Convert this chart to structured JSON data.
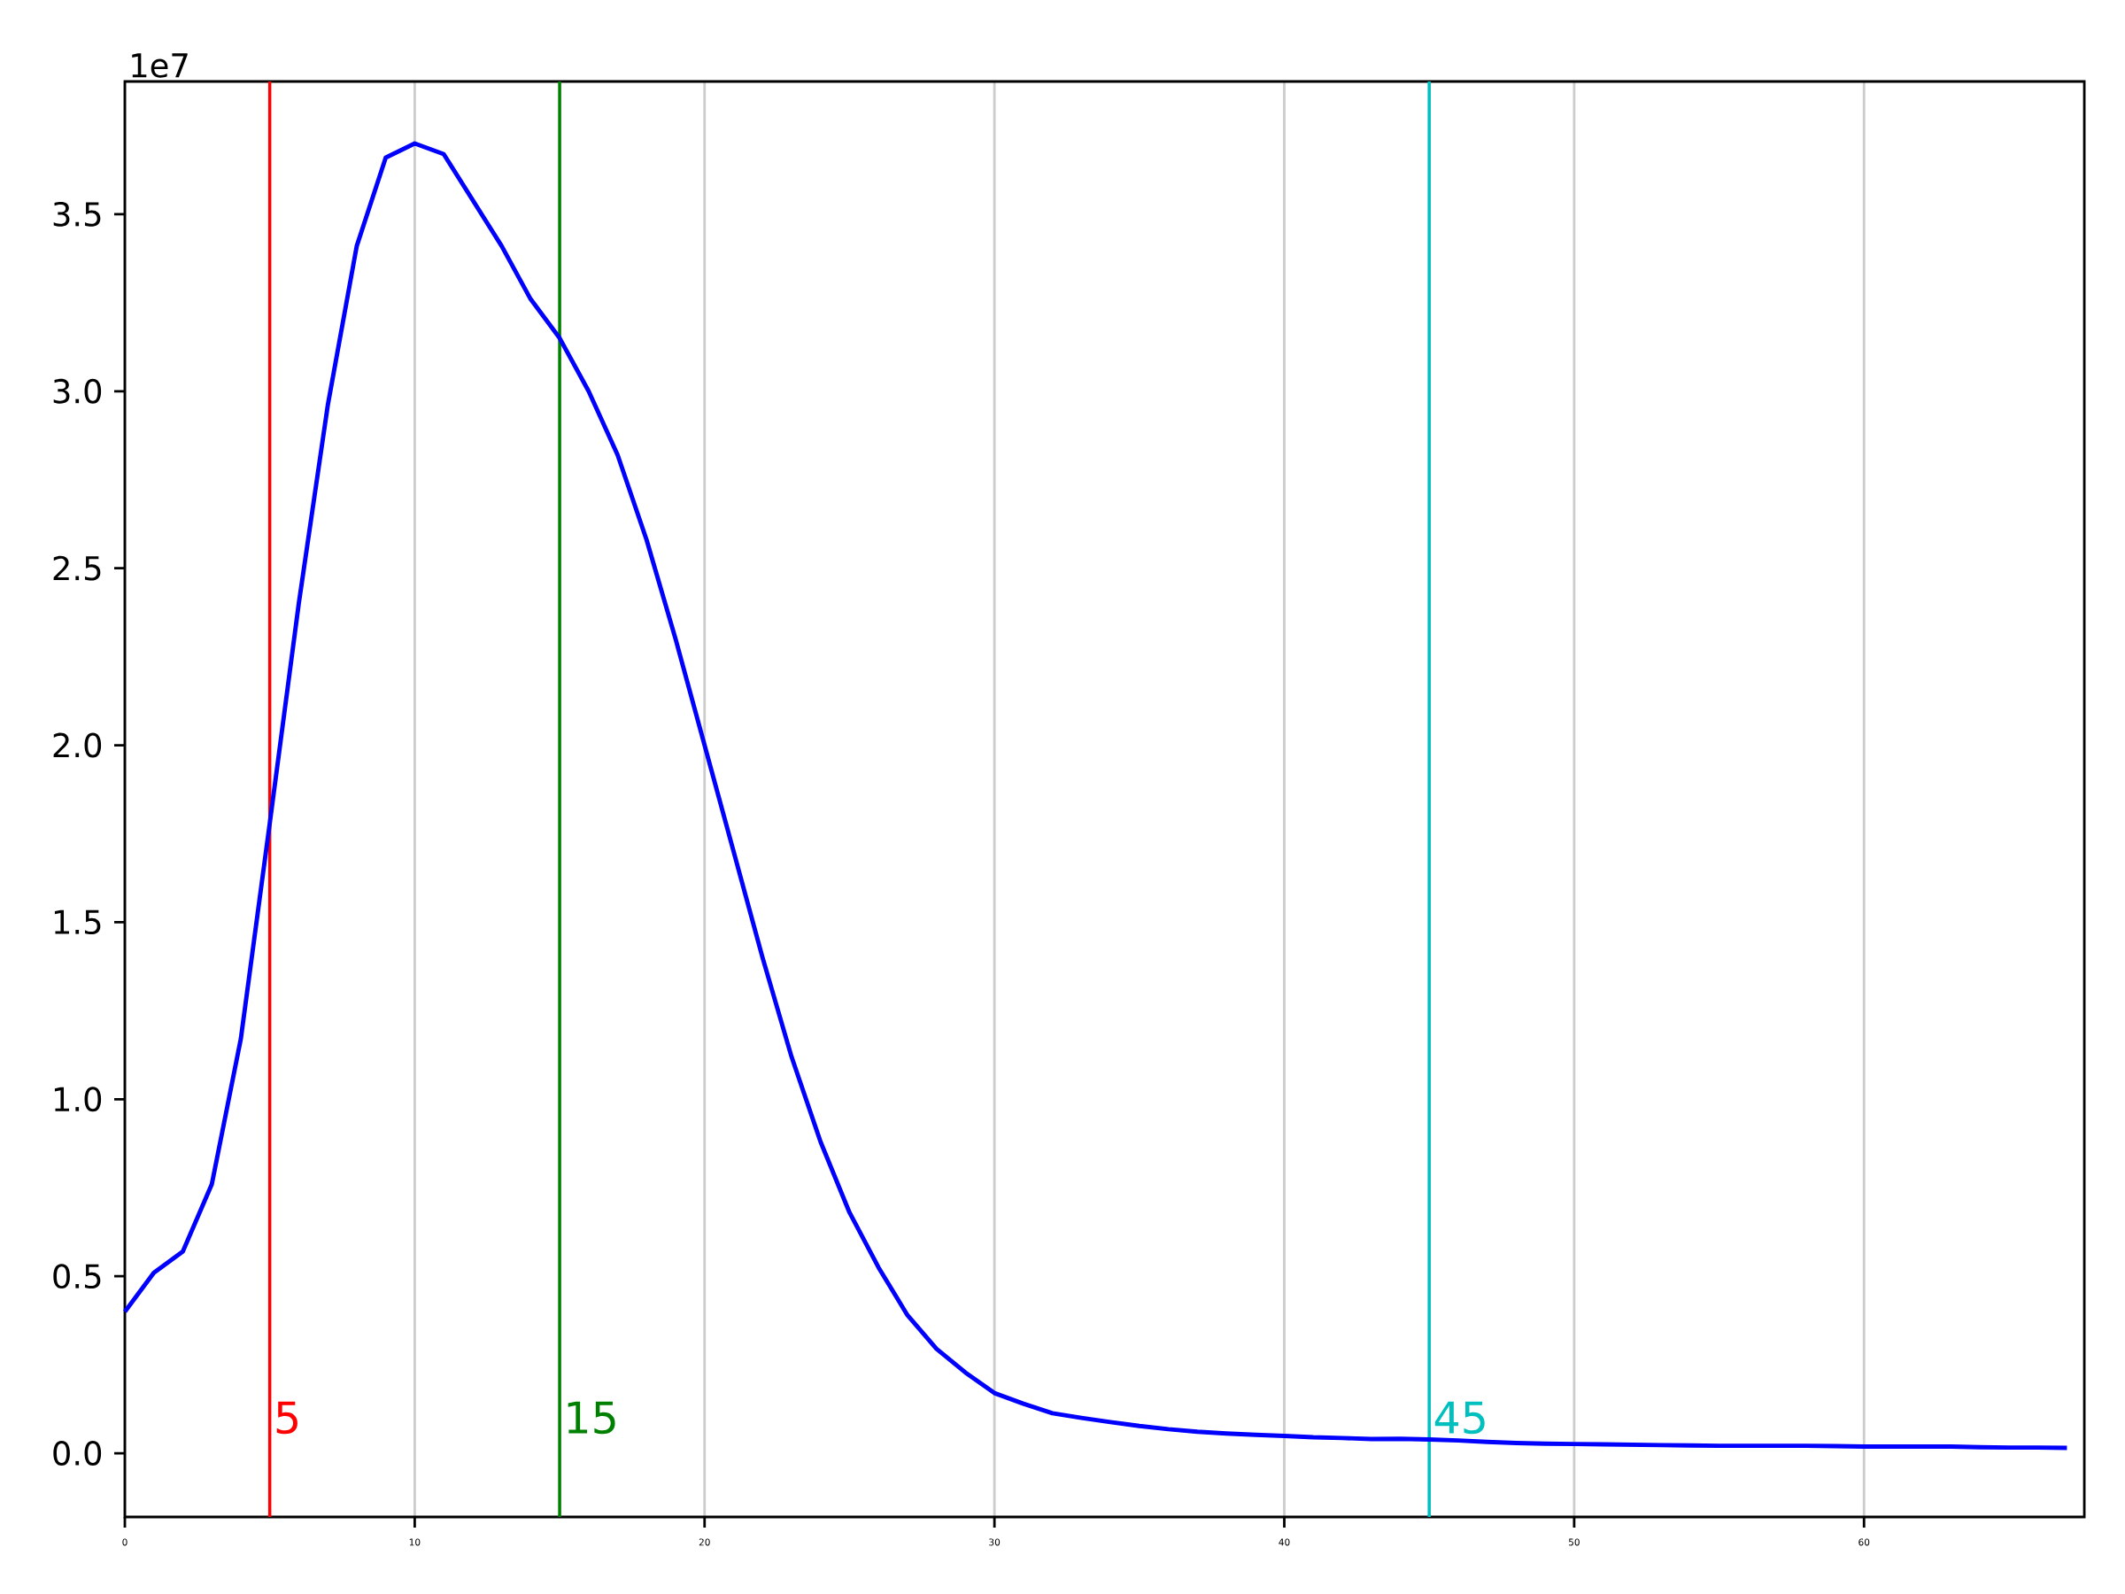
{
  "chart_data": {
    "type": "line",
    "x": [
      0,
      1,
      2,
      3,
      4,
      5,
      6,
      7,
      8,
      9,
      10,
      11,
      12,
      13,
      14,
      15,
      16,
      17,
      18,
      19,
      20,
      21,
      22,
      23,
      24,
      25,
      26,
      27,
      28,
      29,
      30,
      31,
      32,
      33,
      34,
      35,
      36,
      37,
      38,
      39,
      40,
      41,
      42,
      43,
      44,
      45,
      46,
      47,
      48,
      49,
      50,
      51,
      52,
      53,
      54,
      55,
      56,
      57,
      58,
      59,
      60,
      61,
      62,
      63,
      64,
      65,
      66,
      67
    ],
    "series": [
      {
        "color": "#0000ff",
        "values": [
          0.4,
          0.51,
          0.57,
          0.76,
          1.17,
          1.78,
          2.4,
          2.96,
          3.41,
          3.66,
          3.7,
          3.67,
          3.54,
          3.41,
          3.26,
          3.15,
          3.0,
          2.82,
          2.58,
          2.3,
          2.0,
          1.7,
          1.4,
          1.12,
          0.88,
          0.68,
          0.525,
          0.39,
          0.295,
          0.228,
          0.17,
          0.14,
          0.113,
          0.1,
          0.088,
          0.077,
          0.068,
          0.061,
          0.056,
          0.052,
          0.049,
          0.045,
          0.043,
          0.04,
          0.041,
          0.039,
          0.036,
          0.032,
          0.029,
          0.027,
          0.026,
          0.025,
          0.024,
          0.023,
          0.022,
          0.021,
          0.021,
          0.021,
          0.021,
          0.02,
          0.019,
          0.019,
          0.019,
          0.019,
          0.017,
          0.016,
          0.016,
          0.015
        ]
      }
    ],
    "xlim": [
      0,
      67.6
    ],
    "ylim": [
      -0.18,
      3.875
    ],
    "xticks": [
      0,
      10,
      20,
      30,
      40,
      50,
      60
    ],
    "yticks": [
      {
        "value": 0,
        "label": "0.0"
      },
      0.5,
      {
        "value": 1,
        "label": "1.0"
      },
      1.5,
      {
        "value": 2,
        "label": "2.0"
      },
      2.5,
      {
        "value": 3,
        "label": "3.0"
      },
      3.5
    ],
    "grid": "x",
    "annotations": [
      "1e7"
    ],
    "ref_lines": [
      {
        "axis": "x",
        "value": 5,
        "label": "5",
        "color": "#ff0000"
      },
      {
        "axis": "x",
        "value": 15,
        "label": "15",
        "color": "#008000"
      },
      {
        "axis": "x",
        "value": 45,
        "label": "45",
        "color": "#00bfbf"
      }
    ]
  }
}
